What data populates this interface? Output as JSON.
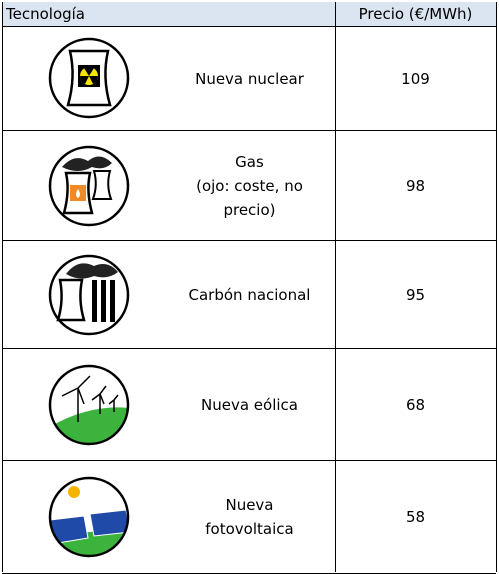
{
  "header": {
    "columns": [
      "Tecnología",
      "Precio (€/MWh)"
    ]
  },
  "table": {
    "rows": [
      [
        "Nueva nuclear",
        109
      ],
      [
        "Gas\n(ojo: coste, no\nprecio)",
        98
      ],
      [
        "Carbón nacional",
        95
      ],
      [
        "Nueva eólica",
        68
      ],
      [
        "Nueva\nfotovoltaica",
        58
      ]
    ]
  }
}
